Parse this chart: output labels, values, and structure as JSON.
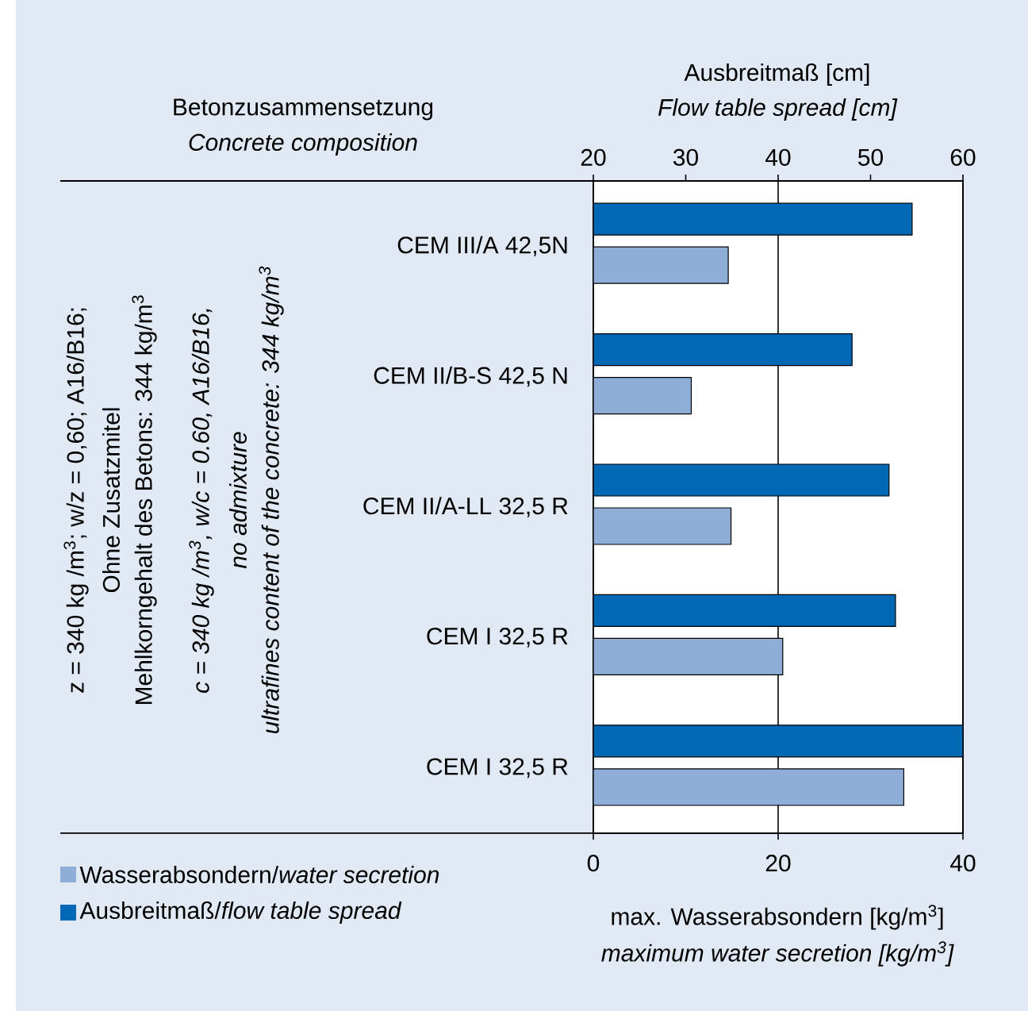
{
  "chart_data": {
    "type": "bar",
    "orientation": "horizontal",
    "categories": [
      "CEM III/A  42,5N",
      "CEM II/B-S 42,5 N",
      "CEM II/A-LL 32,5 R",
      "CEM I 32,5 R",
      "CEM I 32,5 R"
    ],
    "series": [
      {
        "name": "Ausbreitmaß/*flow table spread*",
        "color": "#0068b4",
        "axis": "x2",
        "values": [
          54.5,
          48.0,
          52.0,
          52.7,
          60
        ]
      },
      {
        "name": "Wasserabsondern/*water secretion*",
        "color": "#8eaed8",
        "values": [
          14.6,
          10.6,
          14.9,
          20.5,
          33.6
        ]
      }
    ],
    "xlim": [
      0,
      40
    ],
    "xticks": [
      0,
      20,
      40
    ],
    "x2lim": [
      20,
      60
    ],
    "x2ticks": [
      20,
      30,
      40,
      50,
      60
    ],
    "xlabel": "max. Wasserabsondern [kg/m$^{3}$]",
    "x2label": "Ausbreitmaß [cm]",
    "ylabel": "Betonzusammensetzung",
    "annotations": [
      "Concrete composition",
      "Flow table spread [cm]",
      "maximum water secretion [kg/m$^{3}$]",
      "z = 340 kg /m$^{3}$;  w/z = 0,60; A16/B16;",
      "Ohne Zusatzmitel",
      "Mehlkorngehalt des Betons: 344 kg/m$^{3}$",
      "c = 340 kg /m$^{3}$,  w/c = 0.60, A16/B16,",
      "no admixture",
      "ultrafines content of the concrete: 344 kg/m$^{3}$"
    ],
    "grid": "x",
    "legend": "bottom left"
  }
}
